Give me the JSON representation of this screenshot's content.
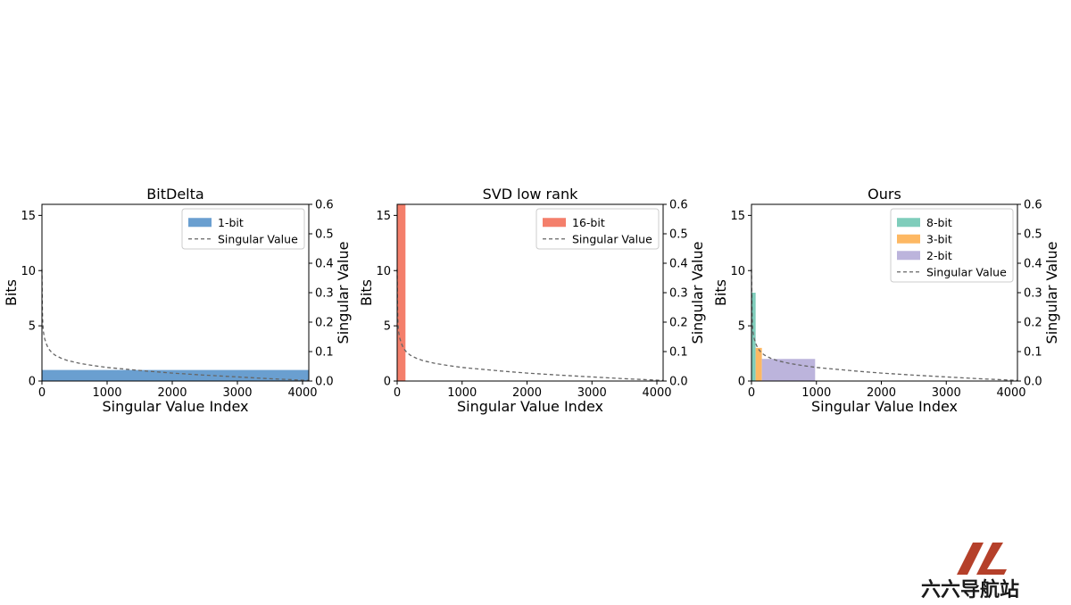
{
  "chart_data": [
    {
      "type": "bar",
      "title": "BitDelta",
      "xlabel": "Singular Value Index",
      "ylabel": "Bits",
      "ylabel_right": "Singular Value",
      "xlim": [
        0,
        4096
      ],
      "ylim": [
        0,
        16
      ],
      "ylim_right": [
        0,
        0.6
      ],
      "x_ticks": [
        "0",
        "1000",
        "2000",
        "3000",
        "4000"
      ],
      "y_ticks": [
        "0",
        "5",
        "10",
        "15"
      ],
      "y_ticks_right": [
        "0.0",
        "0.1",
        "0.2",
        "0.3",
        "0.4",
        "0.5",
        "0.6"
      ],
      "legend_position": "top-right",
      "series": [
        {
          "name": "1-bit",
          "color": "#6a9fd0",
          "x_start": 0,
          "x_end": 4096,
          "value": 1
        }
      ],
      "line_series": {
        "name": "Singular Value",
        "color": "#666666",
        "style": "dashed"
      }
    },
    {
      "type": "bar",
      "title": "SVD low rank",
      "xlabel": "Singular Value Index",
      "ylabel": "Bits",
      "ylabel_right": "Singular Value",
      "xlim": [
        0,
        4096
      ],
      "ylim": [
        0,
        16
      ],
      "ylim_right": [
        0,
        0.6
      ],
      "x_ticks": [
        "0",
        "1000",
        "2000",
        "3000",
        "4000"
      ],
      "y_ticks": [
        "0",
        "5",
        "10",
        "15"
      ],
      "y_ticks_right": [
        "0.0",
        "0.1",
        "0.2",
        "0.3",
        "0.4",
        "0.5",
        "0.6"
      ],
      "legend_position": "top-right",
      "series": [
        {
          "name": "16-bit",
          "color": "#f47f6b",
          "x_start": 0,
          "x_end": 128,
          "value": 16
        }
      ],
      "line_series": {
        "name": "Singular Value",
        "color": "#666666",
        "style": "dashed"
      }
    },
    {
      "type": "bar",
      "title": "Ours",
      "xlabel": "Singular Value Index",
      "ylabel": "Bits",
      "ylabel_right": "Singular Value",
      "xlim": [
        0,
        4096
      ],
      "ylim": [
        0,
        16
      ],
      "ylim_right": [
        0,
        0.6
      ],
      "x_ticks": [
        "0",
        "1000",
        "2000",
        "3000",
        "4000"
      ],
      "y_ticks": [
        "0",
        "5",
        "10",
        "15"
      ],
      "y_ticks_right": [
        "0.0",
        "0.1",
        "0.2",
        "0.3",
        "0.4",
        "0.5",
        "0.6"
      ],
      "legend_position": "top-right",
      "series": [
        {
          "name": "8-bit",
          "color": "#7fcdbb",
          "x_start": 0,
          "x_end": 64,
          "value": 8
        },
        {
          "name": "3-bit",
          "color": "#fdb863",
          "x_start": 64,
          "x_end": 160,
          "value": 3
        },
        {
          "name": "2-bit",
          "color": "#bcb4dc",
          "x_start": 160,
          "x_end": 980,
          "value": 2
        }
      ],
      "line_series": {
        "name": "Singular Value",
        "color": "#666666",
        "style": "dashed"
      }
    }
  ],
  "singular_value_curve": {
    "x": [
      0,
      5,
      10,
      20,
      40,
      70,
      100,
      150,
      200,
      300,
      400,
      600,
      800,
      1000,
      1300,
      1600,
      2000,
      2500,
      3000,
      3500,
      4000,
      4096
    ],
    "y": [
      0.38,
      0.26,
      0.21,
      0.17,
      0.145,
      0.125,
      0.11,
      0.097,
      0.088,
      0.077,
      0.069,
      0.059,
      0.052,
      0.046,
      0.04,
      0.034,
      0.027,
      0.02,
      0.014,
      0.008,
      0.003,
      0.002
    ]
  },
  "watermark": {
    "text": "六六导航站",
    "color": "#b5402a"
  }
}
